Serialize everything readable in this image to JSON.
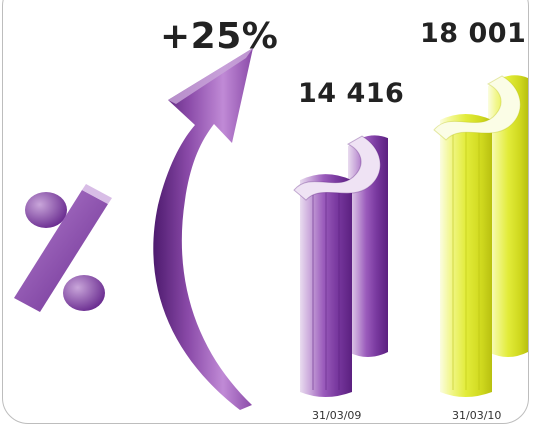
{
  "chart_data": {
    "type": "bar",
    "categories": [
      "31/03/09",
      "31/03/10"
    ],
    "values": [
      14416,
      18001
    ],
    "value_labels": [
      "14 416",
      "18 001"
    ],
    "growth_label": "+25%",
    "colors": {
      "bar_2009": "#8a4aa8",
      "bar_2010": "#e2ec3a",
      "arrow": "#7a3aa0",
      "percent_sign": "#7a3aa0"
    },
    "icons": [
      "percent-sign-icon",
      "curved-up-arrow-icon"
    ]
  }
}
